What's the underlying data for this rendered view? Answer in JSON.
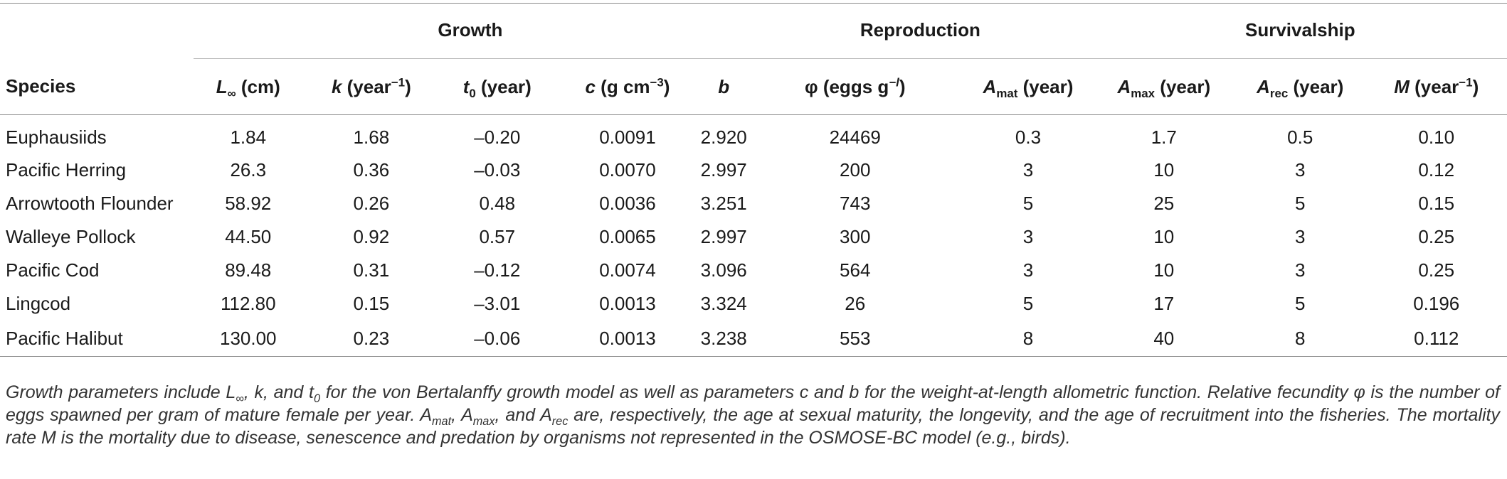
{
  "table": {
    "groups": {
      "growth": "Growth",
      "reproduction": "Reproduction",
      "survivalship": "Survivalship"
    },
    "columns": {
      "species": "Species",
      "linf": {
        "sym": "L",
        "sub": "∞",
        "unit": " (cm)"
      },
      "k": {
        "sym": "k",
        "unit_a": " (year",
        "sup": "−1",
        "unit_b": ")"
      },
      "t0": {
        "sym": "t",
        "sub": "0",
        "unit": " (year)"
      },
      "c": {
        "sym": "c",
        "unit_a": " (g cm",
        "sup": "−3",
        "unit_b": ")"
      },
      "b": {
        "sym": "b"
      },
      "phi": {
        "sym": "φ",
        "unit_a": " (eggs g",
        "sup": "−l",
        "unit_b": ")"
      },
      "amat": {
        "sym": "A",
        "sub": "mat",
        "unit": " (year)"
      },
      "amax": {
        "sym": "A",
        "sub": "max",
        "unit": " (year)"
      },
      "arec": {
        "sym": "A",
        "sub": "rec",
        "unit": " (year)"
      },
      "m": {
        "sym": "M",
        "unit_a": " (year",
        "sup": "−1",
        "unit_b": ")"
      }
    },
    "rows": [
      [
        "Euphausiids",
        "1.84",
        "1.68",
        "–0.20",
        "0.0091",
        "2.920",
        "24469",
        "0.3",
        "1.7",
        "0.5",
        "0.10"
      ],
      [
        "Pacific Herring",
        "26.3",
        "0.36",
        "–0.03",
        "0.0070",
        "2.997",
        "200",
        "3",
        "10",
        "3",
        "0.12"
      ],
      [
        "Arrowtooth Flounder",
        "58.92",
        "0.26",
        "0.48",
        "0.0036",
        "3.251",
        "743",
        "5",
        "25",
        "5",
        "0.15"
      ],
      [
        "Walleye Pollock",
        "44.50",
        "0.92",
        "0.57",
        "0.0065",
        "2.997",
        "300",
        "3",
        "10",
        "3",
        "0.25"
      ],
      [
        "Pacific Cod",
        "89.48",
        "0.31",
        "–0.12",
        "0.0074",
        "3.096",
        "564",
        "3",
        "10",
        "3",
        "0.25"
      ],
      [
        "Lingcod",
        "112.80",
        "0.15",
        "–3.01",
        "0.0013",
        "3.324",
        "26",
        "5",
        "17",
        "5",
        "0.196"
      ],
      [
        "Pacific Halibut",
        "130.00",
        "0.23",
        "–0.06",
        "0.0013",
        "3.238",
        "553",
        "8",
        "40",
        "8",
        "0.112"
      ]
    ]
  },
  "caption": {
    "p1": "Growth parameters include ",
    "linf_sym": "L",
    "linf_sub": "∞",
    "p2": ", k, and ",
    "t0_sym": "t",
    "t0_sub": "0",
    "p3": " for the von Bertalanffy growth model as well as parameters c and b for the weight-at-length allometric function. Relative fecundity φ is the number of eggs spawned per gram of mature female per year. ",
    "amat_sym": "A",
    "amat_sub": "mat",
    "p4": ", ",
    "amax_sym": "A",
    "amax_sub": "max",
    "p5": ", and ",
    "arec_sym": "A",
    "arec_sub": "rec",
    "p6": " are, respectively, the age at sexual maturity, the longevity, and the age of recruitment into the fisheries. The mortality rate M is the mortality due to disease, senescence and predation by organisms not represented in the OSMOSE-BC model (e.g., birds)."
  }
}
